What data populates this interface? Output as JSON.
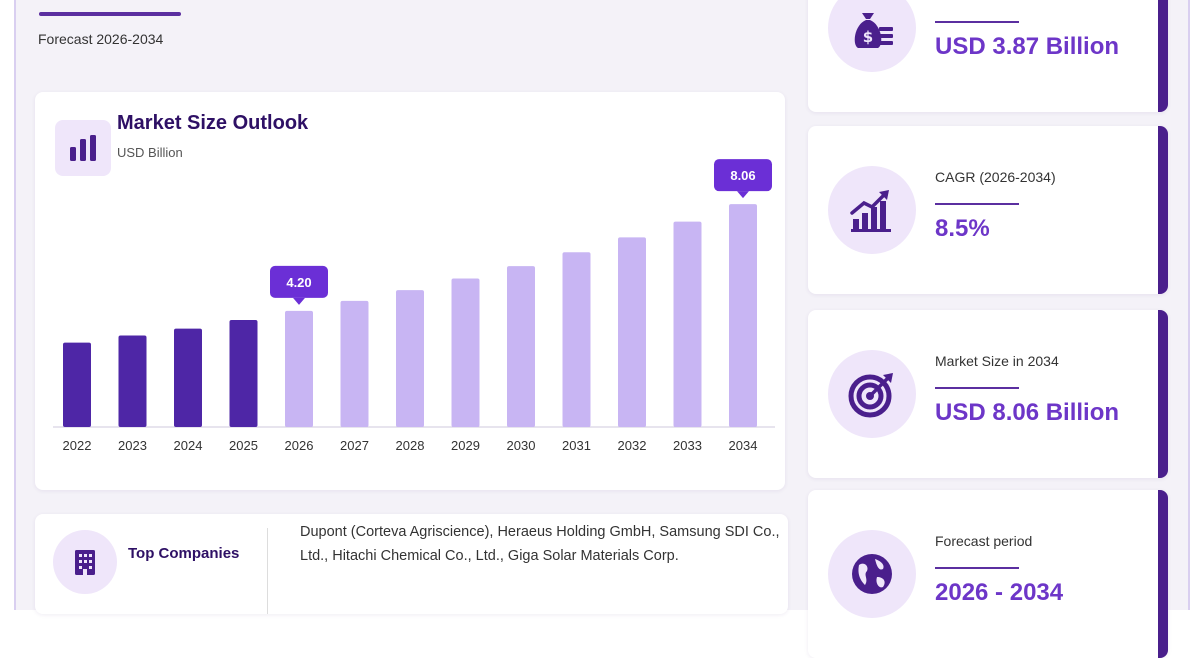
{
  "header": {
    "forecast_text": "Forecast 2026-2034"
  },
  "chart_card": {
    "icon": "bar-chart-icon",
    "title": "Market Size Outlook",
    "subtitle": "USD Billion"
  },
  "chart_data": {
    "type": "bar",
    "title": "Market Size Outlook",
    "ylabel": "USD Billion",
    "categories": [
      "2022",
      "2023",
      "2024",
      "2025",
      "2026",
      "2027",
      "2028",
      "2029",
      "2030",
      "2031",
      "2032",
      "2033",
      "2034"
    ],
    "values": [
      3.05,
      3.31,
      3.56,
      3.87,
      4.2,
      4.56,
      4.95,
      5.37,
      5.82,
      6.32,
      6.86,
      7.43,
      8.06
    ],
    "ylim": [
      0,
      8.5
    ],
    "grid": false,
    "historical_color": "#4e26a6",
    "forecast_color": "#c8b5f3",
    "callout_color": "#6b2fd6",
    "callouts": [
      {
        "category": "2026",
        "label": "4.20"
      },
      {
        "category": "2034",
        "label": "8.06"
      }
    ]
  },
  "companies": {
    "icon": "building-icon",
    "title": "Top Companies",
    "text": "Dupont (Corteva Agriscience), Heraeus Holding GmbH, Samsung SDI Co., Ltd., Hitachi Chemical Co., Ltd., Giga Solar Materials Corp."
  },
  "kpis": [
    {
      "icon": "money-bag-icon",
      "label": "",
      "value": "USD 3.87 Billion"
    },
    {
      "icon": "growth-chart-icon",
      "label": "CAGR (2026-2034)",
      "value": "8.5%"
    },
    {
      "icon": "target-icon",
      "label": "Market Size in 2034",
      "value": "USD 8.06 Billion"
    },
    {
      "icon": "globe-icon",
      "label": "Forecast period",
      "value": "2026 - 2034"
    }
  ],
  "colors": {
    "accent": "#6d36c8",
    "dark_accent": "#2e1065",
    "icon_bg": "#efe6fa"
  }
}
